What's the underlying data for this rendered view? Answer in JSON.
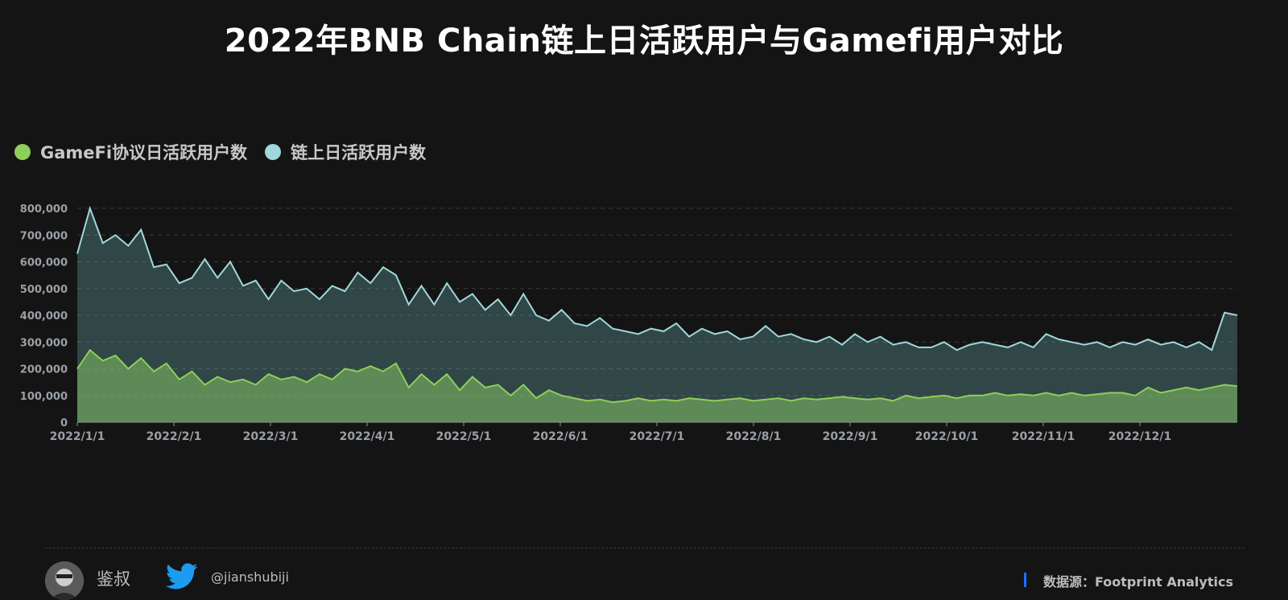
{
  "title": "2022年BNB Chain链上日活跃用户与Gamefi用户对比",
  "legend": {
    "gamefi_label": "GameFi协议日活跃用户数",
    "chain_label": "链上日活跃用户数",
    "gamefi_color": "#8fce5a",
    "chain_color": "#9fd8dc"
  },
  "footer": {
    "author": "鉴叔",
    "handle": "@jianshubiji",
    "source": "数据源：Footprint  Analytics",
    "icons": [
      "avatar",
      "twitter-icon"
    ]
  },
  "chart_data": {
    "type": "area",
    "x_ticks": [
      "2022/1/1",
      "2022/2/1",
      "2022/3/1",
      "2022/4/1",
      "2022/5/1",
      "2022/6/1",
      "2022/7/1",
      "2022/8/1",
      "2022/9/1",
      "2022/10/1",
      "2022/11/1",
      "2022/12/1"
    ],
    "y_ticks": [
      "0",
      "100,000",
      "200,000",
      "300,000",
      "400,000",
      "500,000",
      "600,000",
      "700,000",
      "800,000"
    ],
    "ylim": [
      0,
      800000
    ],
    "grid": "horizontal dashed",
    "legend_position": "top-left",
    "x_points": [
      "2022/1/1",
      "2022/1/4",
      "2022/1/8",
      "2022/1/12",
      "2022/1/16",
      "2022/1/20",
      "2022/1/24",
      "2022/1/28",
      "2022/2/1",
      "2022/2/5",
      "2022/2/9",
      "2022/2/13",
      "2022/2/17",
      "2022/2/21",
      "2022/2/25",
      "2022/3/1",
      "2022/3/5",
      "2022/3/9",
      "2022/3/13",
      "2022/3/17",
      "2022/3/21",
      "2022/3/25",
      "2022/3/29",
      "2022/4/2",
      "2022/4/6",
      "2022/4/10",
      "2022/4/14",
      "2022/4/18",
      "2022/4/22",
      "2022/4/26",
      "2022/4/30",
      "2022/5/4",
      "2022/5/8",
      "2022/5/12",
      "2022/5/16",
      "2022/5/20",
      "2022/5/24",
      "2022/5/28",
      "2022/6/1",
      "2022/6/5",
      "2022/6/9",
      "2022/6/13",
      "2022/6/17",
      "2022/6/21",
      "2022/6/25",
      "2022/6/29",
      "2022/7/3",
      "2022/7/7",
      "2022/7/11",
      "2022/7/15",
      "2022/7/19",
      "2022/7/23",
      "2022/7/27",
      "2022/7/31",
      "2022/8/4",
      "2022/8/8",
      "2022/8/12",
      "2022/8/16",
      "2022/8/20",
      "2022/8/24",
      "2022/8/28",
      "2022/9/1",
      "2022/9/5",
      "2022/9/9",
      "2022/9/13",
      "2022/9/17",
      "2022/9/21",
      "2022/9/25",
      "2022/9/29",
      "2022/10/3",
      "2022/10/7",
      "2022/10/11",
      "2022/10/15",
      "2022/10/19",
      "2022/10/23",
      "2022/10/27",
      "2022/10/31",
      "2022/11/4",
      "2022/11/8",
      "2022/11/12",
      "2022/11/16",
      "2022/11/20",
      "2022/11/24",
      "2022/11/28",
      "2022/12/2",
      "2022/12/6",
      "2022/12/10",
      "2022/12/14",
      "2022/12/18",
      "2022/12/22",
      "2022/12/26",
      "2022/12/31"
    ],
    "series": [
      {
        "name": "链上日活跃用户数",
        "values": [
          630000,
          800000,
          670000,
          700000,
          660000,
          720000,
          580000,
          590000,
          520000,
          540000,
          610000,
          540000,
          600000,
          510000,
          530000,
          460000,
          530000,
          490000,
          500000,
          460000,
          510000,
          490000,
          560000,
          520000,
          580000,
          550000,
          440000,
          510000,
          440000,
          520000,
          450000,
          480000,
          420000,
          460000,
          400000,
          480000,
          400000,
          380000,
          420000,
          370000,
          360000,
          390000,
          350000,
          340000,
          330000,
          350000,
          340000,
          370000,
          320000,
          350000,
          330000,
          340000,
          310000,
          320000,
          360000,
          320000,
          330000,
          310000,
          300000,
          320000,
          290000,
          330000,
          300000,
          320000,
          290000,
          300000,
          280000,
          280000,
          300000,
          270000,
          290000,
          300000,
          290000,
          280000,
          300000,
          280000,
          330000,
          310000,
          300000,
          290000,
          300000,
          280000,
          300000,
          290000,
          310000,
          290000,
          300000,
          280000,
          300000,
          270000,
          410000,
          400000
        ]
      },
      {
        "name": "GameFi协议日活跃用户数",
        "values": [
          200000,
          270000,
          230000,
          250000,
          200000,
          240000,
          190000,
          220000,
          160000,
          190000,
          140000,
          170000,
          150000,
          160000,
          140000,
          180000,
          160000,
          170000,
          150000,
          180000,
          160000,
          200000,
          190000,
          210000,
          190000,
          220000,
          130000,
          180000,
          140000,
          180000,
          120000,
          170000,
          130000,
          140000,
          100000,
          140000,
          90000,
          120000,
          100000,
          90000,
          80000,
          85000,
          75000,
          80000,
          90000,
          80000,
          85000,
          80000,
          90000,
          85000,
          80000,
          85000,
          90000,
          80000,
          85000,
          90000,
          80000,
          90000,
          85000,
          90000,
          95000,
          90000,
          85000,
          90000,
          80000,
          100000,
          90000,
          95000,
          100000,
          90000,
          100000,
          100000,
          110000,
          100000,
          105000,
          100000,
          110000,
          100000,
          110000,
          100000,
          105000,
          110000,
          110000,
          100000,
          130000,
          110000,
          120000,
          130000,
          120000,
          130000,
          140000,
          135000
        ]
      }
    ]
  }
}
